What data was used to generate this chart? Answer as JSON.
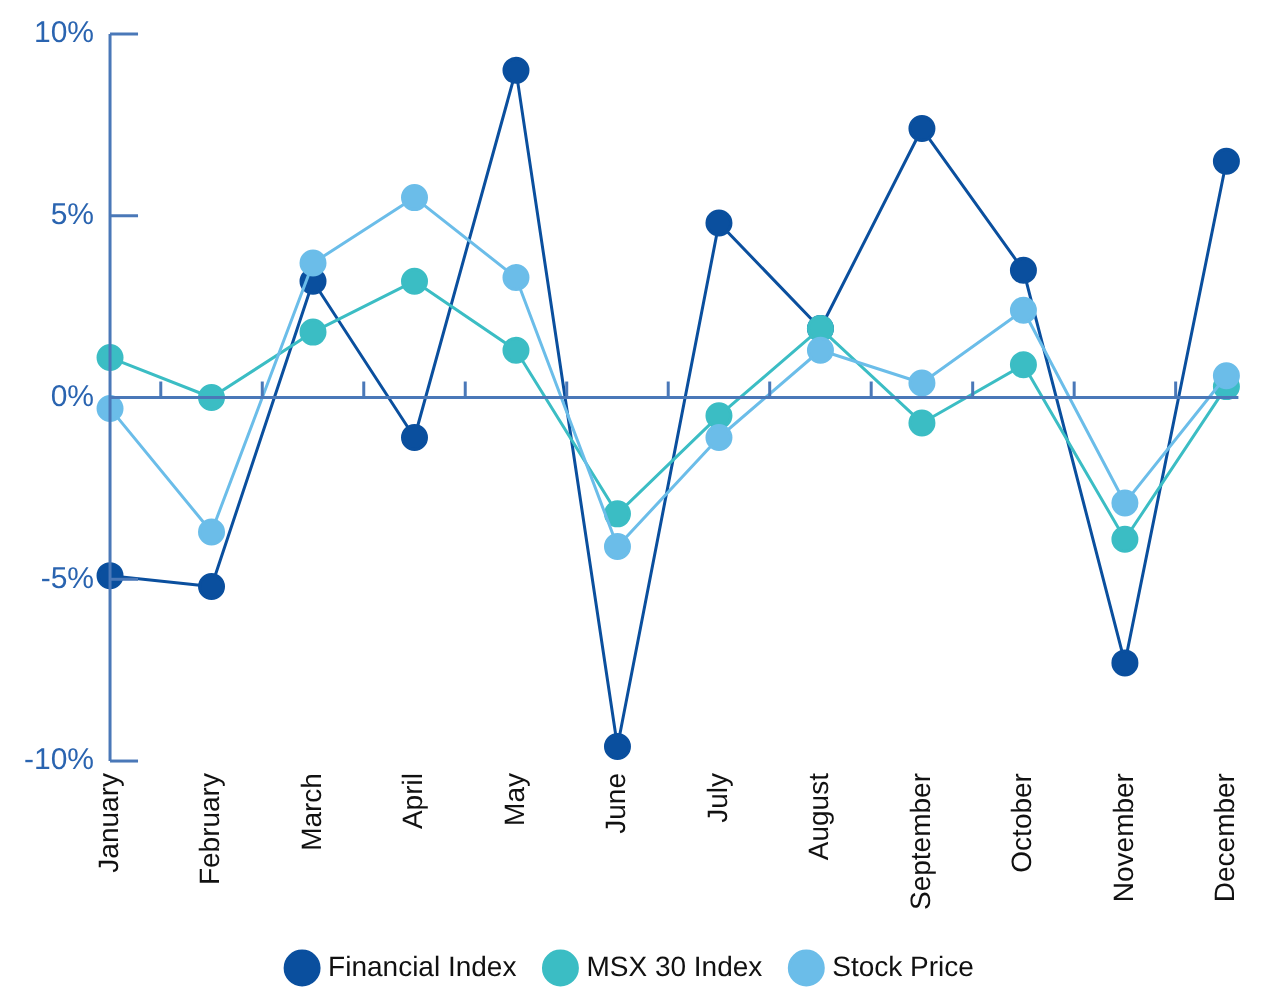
{
  "chart_data": {
    "type": "line",
    "categories": [
      "January",
      "February",
      "March",
      "April",
      "May",
      "June",
      "July",
      "August",
      "September",
      "October",
      "November",
      "December"
    ],
    "series": [
      {
        "name": "Financial Index",
        "color": "#0a4f9e",
        "values": [
          -4.9,
          -5.2,
          3.2,
          -1.1,
          9.0,
          -9.6,
          4.8,
          1.9,
          7.4,
          3.5,
          -7.3,
          6.5
        ]
      },
      {
        "name": "MSX 30 Index",
        "color": "#3bbdc4",
        "values": [
          1.1,
          0,
          1.8,
          3.2,
          1.3,
          -3.2,
          -0.5,
          1.9,
          -0.7,
          0.9,
          -3.9,
          0.3
        ]
      },
      {
        "name": "Stock Price",
        "color": "#6bbde9",
        "values": [
          -0.3,
          -3.7,
          3.7,
          5.5,
          3.3,
          -4.1,
          -1.1,
          1.3,
          0.4,
          2.4,
          -2.9,
          0.6
        ]
      }
    ],
    "ylim": [
      -10,
      10
    ],
    "yticks": [
      {
        "value": -10,
        "label": "-10%"
      },
      {
        "value": -5,
        "label": "-5%"
      },
      {
        "value": 0,
        "label": "0%"
      },
      {
        "value": 5,
        "label": "5%"
      },
      {
        "value": 10,
        "label": "10%"
      }
    ],
    "ref_lines": [
      {
        "axis": "y",
        "value": 0,
        "color": "#4a78b8"
      }
    ],
    "grid": false,
    "legend": "bottom",
    "marker": "circle",
    "line_style": "solid"
  }
}
